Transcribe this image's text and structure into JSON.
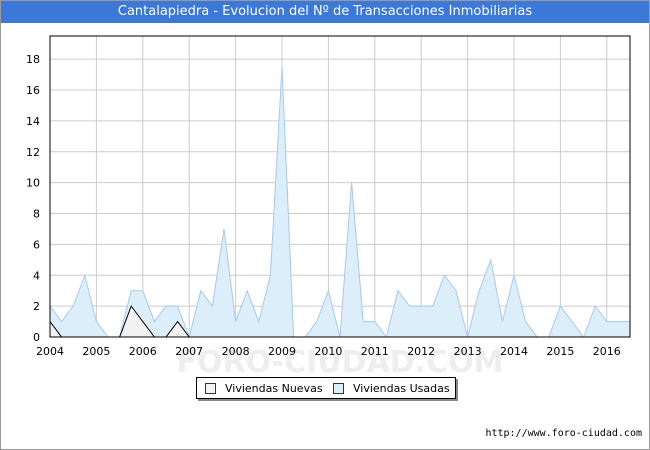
{
  "title": "Cantalapiedra - Evolucion del Nº de Transacciones Inmobiliarias",
  "footer_url": "http://www.foro-ciudad.com",
  "watermark": "FORO-CIUDAD.COM",
  "colors": {
    "title_bg": "#3b78d8",
    "nuevas_fill": "#f2f2f2",
    "nuevas_line": "#000000",
    "usadas_fill": "#ddeefb",
    "usadas_line": "#a8c8ec",
    "grid": "#cccccc"
  },
  "chart_data": {
    "type": "area",
    "title": "Cantalapiedra - Evolucion del Nº de Transacciones Inmobiliarias",
    "xlabel": "",
    "ylabel": "",
    "ylim": [
      0,
      19.5
    ],
    "yticks": [
      0,
      2,
      4,
      6,
      8,
      10,
      12,
      14,
      16,
      18
    ],
    "xlim": [
      2004,
      2016.5
    ],
    "xticks": [
      2004,
      2005,
      2006,
      2007,
      2008,
      2009,
      2010,
      2011,
      2012,
      2013,
      2014,
      2015,
      2016
    ],
    "grid": true,
    "legend_position": "bottom-center",
    "x": [
      2004,
      2004.25,
      2004.5,
      2004.75,
      2005,
      2005.25,
      2005.5,
      2005.75,
      2006,
      2006.25,
      2006.5,
      2006.75,
      2007,
      2007.25,
      2007.5,
      2007.75,
      2008,
      2008.25,
      2008.5,
      2008.75,
      2009,
      2009.25,
      2009.5,
      2009.75,
      2010,
      2010.25,
      2010.5,
      2010.75,
      2011,
      2011.25,
      2011.5,
      2011.75,
      2012,
      2012.25,
      2012.5,
      2012.75,
      2013,
      2013.25,
      2013.5,
      2013.75,
      2014,
      2014.25,
      2014.5,
      2014.75,
      2015,
      2015.25,
      2015.5,
      2015.75,
      2016,
      2016.25,
      2016.5
    ],
    "series": [
      {
        "name": "Viviendas Nuevas",
        "values": [
          1,
          0,
          0,
          0,
          0,
          0,
          0,
          2,
          1,
          0,
          0,
          1,
          0,
          0,
          0,
          0,
          0,
          0,
          0,
          0,
          0,
          0,
          0,
          0,
          0,
          0,
          0,
          0,
          0,
          0,
          0,
          0,
          0,
          0,
          0,
          0,
          0,
          0,
          0,
          0,
          0,
          0,
          0,
          0,
          0,
          0,
          0,
          0,
          0,
          0,
          0
        ]
      },
      {
        "name": "Viviendas Usadas",
        "values": [
          2,
          1,
          2,
          4,
          1,
          0,
          0,
          3,
          3,
          1,
          2,
          2,
          0,
          3,
          2,
          7,
          1,
          3,
          1,
          4,
          17.5,
          0,
          0,
          1,
          3,
          0,
          10,
          1,
          1,
          0,
          3,
          2,
          2,
          2,
          4,
          3,
          0,
          3,
          5,
          1,
          4,
          1,
          0,
          0,
          2,
          1,
          0,
          2,
          1,
          1,
          1
        ]
      }
    ]
  }
}
